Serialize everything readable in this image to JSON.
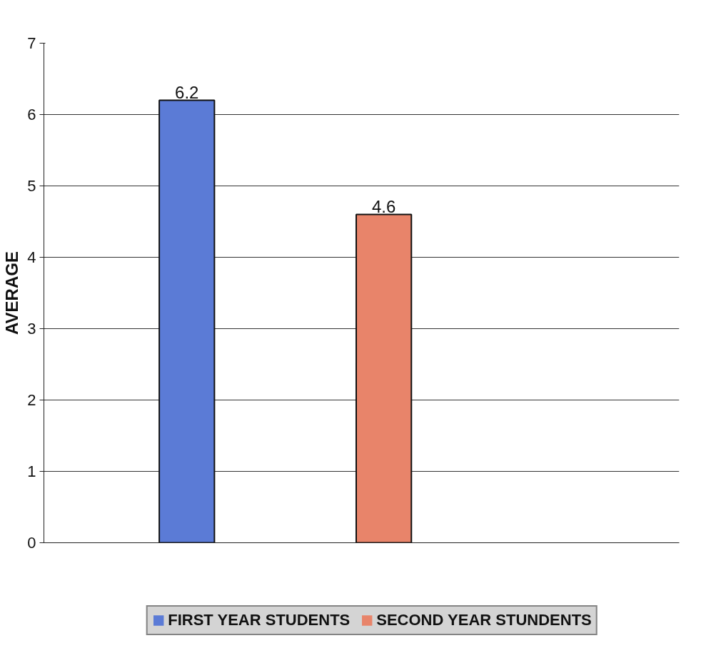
{
  "chart_data": {
    "type": "bar",
    "ylabel": "AVERAGE",
    "categories": [
      null
    ],
    "series": [
      {
        "name": "FIRST YEAR STUDENTS",
        "color": "#5b7bd6",
        "values": [
          6.2
        ]
      },
      {
        "name": "SECOND YEAR STUNDENTS",
        "color": "#e8846a",
        "values": [
          4.6
        ]
      }
    ],
    "ylim": [
      0,
      7
    ],
    "yticks": [
      0,
      1,
      2,
      3,
      4,
      5,
      6,
      7
    ],
    "grid": "y",
    "legend": "bottom",
    "data_labels": true
  }
}
